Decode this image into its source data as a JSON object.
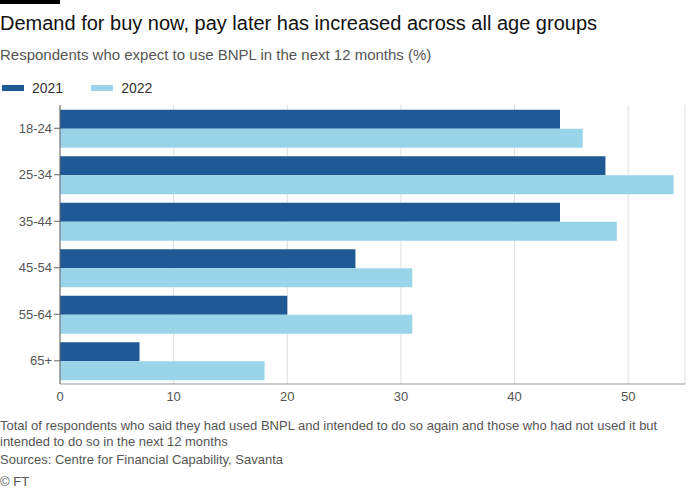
{
  "chart_data": {
    "type": "bar",
    "orientation": "horizontal",
    "title": "Demand for buy now, pay later has increased across all age groups",
    "subtitle": "Respondents who expect to use BNPL in the next 12 months (%)",
    "categories": [
      "18-24",
      "25-34",
      "35-44",
      "45-54",
      "55-64",
      "65+"
    ],
    "series": [
      {
        "name": "2021",
        "color": "#1f5a96",
        "values": [
          44,
          48,
          44,
          26,
          20,
          7
        ]
      },
      {
        "name": "2022",
        "color": "#99d4e8",
        "values": [
          46,
          54,
          49,
          31,
          31,
          18
        ]
      }
    ],
    "xlim": [
      0,
      55
    ],
    "xticks": [
      0,
      10,
      20,
      30,
      40,
      50
    ],
    "grid": true,
    "legend": "top left",
    "note": "Total of respondents who said they had used BNPL and intended to do so again and those who had not used it but intended to do so in the next 12 months",
    "source": "Sources: Centre for Financial Capability, Savanta",
    "credit": "© FT"
  }
}
